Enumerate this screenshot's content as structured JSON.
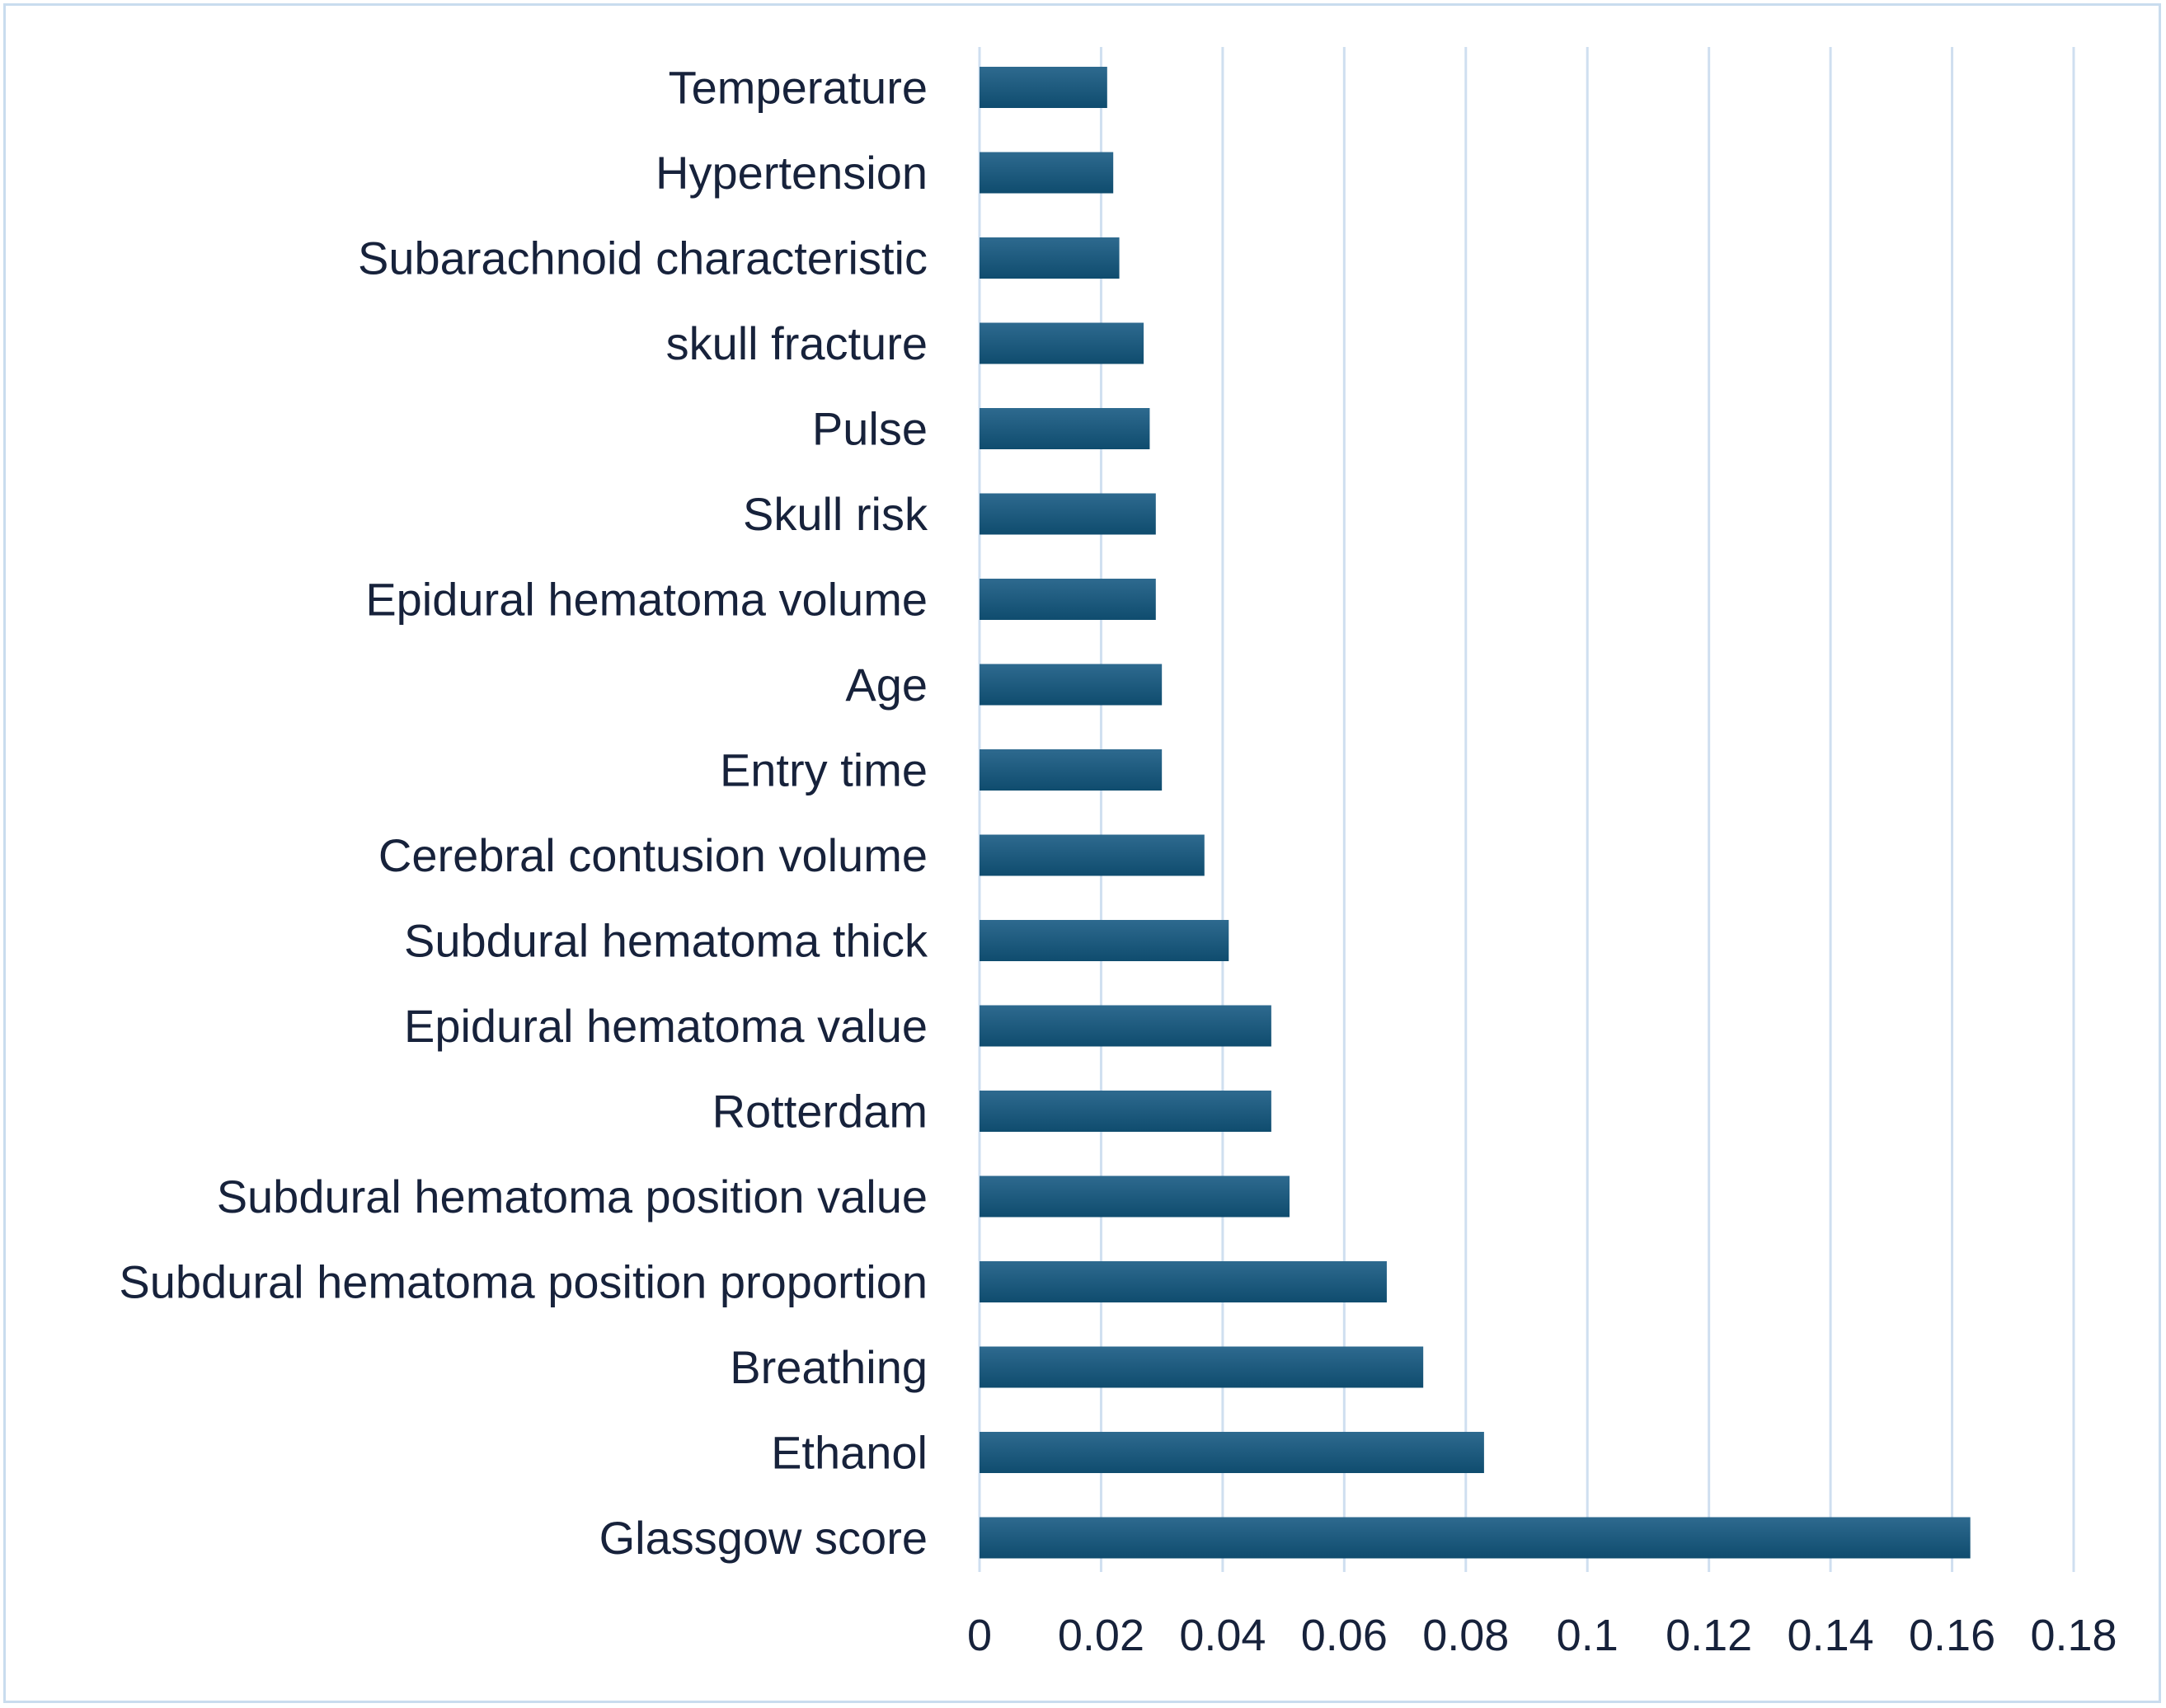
{
  "chart_data": {
    "type": "bar",
    "orientation": "horizontal",
    "categories": [
      "Temperature",
      "Hypertension",
      "Subarachnoid characteristic",
      "skull fracture",
      "Pulse",
      "Skull risk",
      "Epidural hematoma volume",
      "Age",
      "Entry time",
      "Cerebral contusion volume",
      "Subdural hematoma thick",
      "Epidural hematoma value",
      "Rotterdam",
      "Subdural hematoma position value",
      "Subdural hematoma position proportion",
      "Breathing",
      "Ethanol",
      "Glassgow score"
    ],
    "values": [
      0.021,
      0.022,
      0.023,
      0.027,
      0.028,
      0.029,
      0.029,
      0.03,
      0.03,
      0.037,
      0.041,
      0.048,
      0.048,
      0.051,
      0.067,
      0.073,
      0.083,
      0.163
    ],
    "xlim": [
      0,
      0.18
    ],
    "xticks": [
      "0",
      "0.02",
      "0.04",
      "0.06",
      "0.08",
      "0.1",
      "0.12",
      "0.14",
      "0.16",
      "0.18"
    ],
    "title": "",
    "xlabel": "",
    "ylabel": "",
    "grid": "vertical",
    "legend": "none",
    "colors": {
      "bar_top": "#2e6a8f",
      "bar_bottom": "#0f4c6e",
      "grid": "#cfdff0",
      "text": "#17223b",
      "frame": "#c9dcee"
    }
  }
}
